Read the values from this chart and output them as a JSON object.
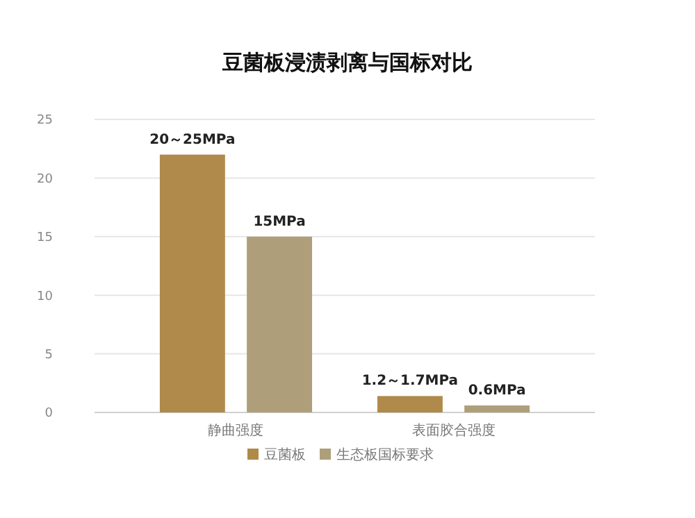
{
  "chart_data": {
    "type": "bar",
    "title": "豆菌板浸渍剥离与国标对比",
    "categories": [
      "静曲强度",
      "表面胶合强度"
    ],
    "series": [
      {
        "name": "豆菌板",
        "color": "#b08a4a",
        "values": [
          22,
          1.4
        ]
      },
      {
        "name": "生态板国标要求",
        "color": "#ae9f7a",
        "values": [
          15,
          0.6
        ],
        "value_labels": [
          "15MPa",
          "0.6MPa"
        ]
      }
    ],
    "annotations": [
      "20～25MPa",
      "1.2～1.7MPa"
    ],
    "ylim": [
      0,
      25
    ],
    "yticks": [
      0,
      5,
      10,
      15,
      20,
      25
    ],
    "grid": "y",
    "legend": "bottom"
  }
}
